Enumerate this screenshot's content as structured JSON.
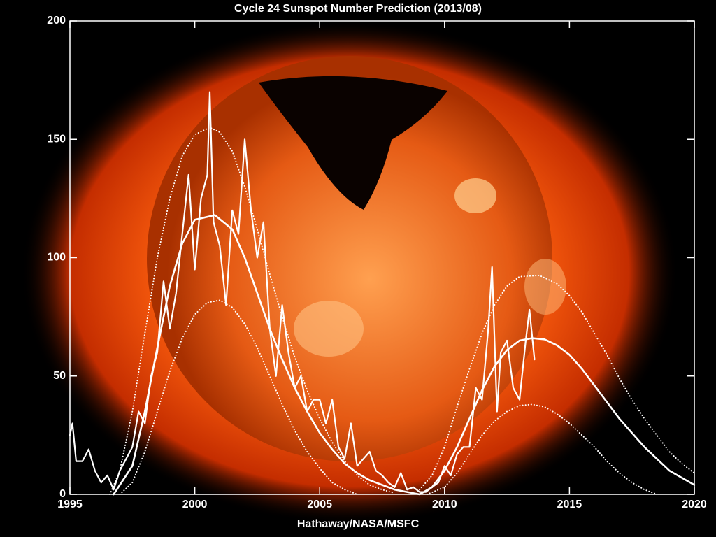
{
  "chart_data": {
    "type": "line",
    "title": "Cycle 24 Sunspot Number Prediction (2013/08)",
    "xlabel": "Hathaway/NASA/MSFC",
    "xlim": [
      1995,
      2020
    ],
    "xticks": [
      1995,
      2000,
      2005,
      2010,
      2015,
      2020
    ],
    "ylim": [
      0,
      200
    ],
    "yticks": [
      0,
      50,
      100,
      150,
      200
    ],
    "series": [
      {
        "color": "#ffffff",
        "style": "solid",
        "width": 2.2,
        "x": [
          1995.0,
          1995.1,
          1995.25,
          1995.5,
          1995.75,
          1996.0,
          1996.25,
          1996.5,
          1996.75,
          1997.0,
          1997.25,
          1997.5,
          1997.75,
          1998.0,
          1998.25,
          1998.5,
          1998.75,
          1999.0,
          1999.25,
          1999.5,
          1999.75,
          2000.0,
          2000.25,
          2000.5,
          2000.6,
          2000.75,
          2001.0,
          2001.25,
          2001.5,
          2001.75,
          2002.0,
          2002.25,
          2002.5,
          2002.75,
          2003.0,
          2003.25,
          2003.5,
          2003.75,
          2004.0,
          2004.25,
          2004.5,
          2004.75,
          2005.0,
          2005.25,
          2005.5,
          2005.75,
          2006.0,
          2006.25,
          2006.5,
          2006.75,
          2007.0,
          2007.25,
          2007.5,
          2007.75,
          2008.0,
          2008.25,
          2008.5,
          2008.75,
          2009.0,
          2009.25,
          2009.5,
          2009.75,
          2010.0,
          2010.25,
          2010.5,
          2010.75,
          2011.0,
          2011.25,
          2011.5,
          2011.75,
          2011.9,
          2012.1,
          2012.25,
          2012.5,
          2012.75,
          2013.0,
          2013.25,
          2013.4,
          2013.6
        ],
        "values": [
          25,
          30,
          14,
          14,
          19,
          10,
          5,
          8,
          2,
          10,
          15,
          20,
          35,
          30,
          50,
          60,
          90,
          70,
          85,
          110,
          135,
          95,
          125,
          135,
          170,
          115,
          105,
          80,
          120,
          110,
          150,
          120,
          100,
          115,
          70,
          50,
          80,
          60,
          45,
          50,
          35,
          40,
          40,
          30,
          40,
          20,
          15,
          30,
          12,
          15,
          18,
          10,
          8,
          5,
          3,
          9,
          2,
          3,
          1,
          1,
          3,
          5,
          12,
          8,
          17,
          20,
          20,
          45,
          40,
          70,
          96,
          35,
          60,
          65,
          45,
          40,
          65,
          78,
          57
        ]
      },
      {
        "color": "#ffffff",
        "style": "solid",
        "width": 2.6,
        "x": [
          1996.75,
          1997.5,
          1998,
          1998.5,
          1999,
          1999.5,
          2000,
          2000.8,
          2001.5,
          2002,
          2002.5,
          2003,
          2003.5,
          2004,
          2004.5,
          2005,
          2005.5,
          2006,
          2006.5,
          2007,
          2007.5,
          2008,
          2008.5,
          2009,
          2009.5,
          2010,
          2010.5,
          2011,
          2011.5,
          2012,
          2012.5,
          2013,
          2013.5,
          2014,
          2014.5,
          2015,
          2015.5,
          2016,
          2016.5,
          2017,
          2017.5,
          2018,
          2018.5,
          2019,
          2019.5,
          2020
        ],
        "values": [
          0,
          12,
          35,
          62,
          88,
          106,
          116,
          118,
          112,
          100,
          85,
          70,
          57,
          45,
          35,
          26,
          19,
          13,
          9,
          6,
          4,
          2,
          1,
          0,
          3,
          10,
          20,
          32,
          44,
          54,
          61,
          65,
          66,
          65.5,
          63,
          59,
          53,
          46,
          39,
          32,
          26,
          20,
          15,
          10,
          7,
          4
        ]
      },
      {
        "color": "#ffffff",
        "style": "dotted",
        "width": 2,
        "x": [
          1996.6,
          1997,
          1997.5,
          1998,
          1998.5,
          1999,
          1999.5,
          2000,
          2000.6,
          2001,
          2001.5,
          2002,
          2002.5,
          2003,
          2003.5,
          2004,
          2004.5,
          2005,
          2005.5,
          2006,
          2006.5,
          2007,
          2007.5,
          2008,
          2008.5,
          2009,
          2009.5,
          2010,
          2010.5,
          2011,
          2011.5,
          2012,
          2012.5,
          2013,
          2013.8,
          2014.5,
          2015,
          2015.5,
          2016,
          2016.5,
          2017,
          2017.5,
          2018,
          2018.5,
          2019,
          2019.5,
          2020
        ],
        "values": [
          0,
          10,
          35,
          68,
          100,
          125,
          143,
          152,
          155,
          153,
          145,
          130,
          112,
          93,
          75,
          58,
          44,
          32,
          22,
          14,
          8,
          4,
          2,
          0.5,
          null,
          2,
          8,
          20,
          37,
          53,
          68,
          80,
          88,
          92,
          92.5,
          89,
          84,
          77,
          68,
          59,
          49,
          40,
          32,
          25,
          18,
          13,
          9
        ]
      },
      {
        "color": "#ffffff",
        "style": "dotted",
        "width": 2,
        "x": [
          1997,
          1997.5,
          1998,
          1998.5,
          1999,
          1999.5,
          2000,
          2000.5,
          2001,
          2001.5,
          2002,
          2002.5,
          2003,
          2003.5,
          2004,
          2004.5,
          2005,
          2005.5,
          2006,
          2006.5,
          2008,
          2009.3,
          2010,
          2010.5,
          2011,
          2011.5,
          2012,
          2012.5,
          2013,
          2013.5,
          2014,
          2014.5,
          2015,
          2015.5,
          2016,
          2016.5,
          2017,
          2017.5,
          2018,
          2018.5
        ],
        "values": [
          0,
          5,
          18,
          35,
          52,
          66,
          76,
          81,
          82,
          79,
          72,
          62,
          50,
          38,
          27,
          18,
          11,
          5,
          2,
          0,
          null,
          0,
          3,
          9,
          17,
          25,
          31,
          35,
          37.5,
          38,
          37,
          34,
          30,
          25,
          20,
          14,
          9,
          5,
          2,
          0
        ]
      }
    ]
  }
}
